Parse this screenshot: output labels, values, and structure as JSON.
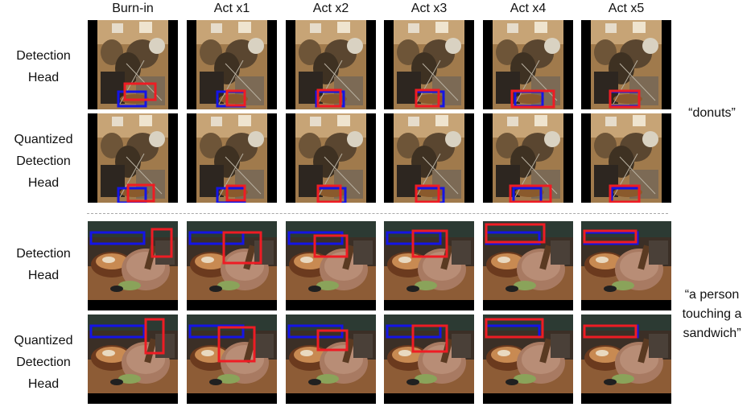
{
  "columns": [
    "Burn-in",
    "Act x1",
    "Act x2",
    "Act x3",
    "Act x4",
    "Act x5"
  ],
  "rows": [
    {
      "label": [
        "Detection",
        "Head"
      ],
      "scene": "donuts",
      "predicted_boxes": [
        "red",
        "blue"
      ]
    },
    {
      "label": [
        "Quantized",
        "Detection",
        "Head"
      ],
      "scene": "donuts",
      "predicted_boxes": [
        "red",
        "blue"
      ]
    },
    {
      "label": [
        "Detection",
        "Head"
      ],
      "scene": "sandwich",
      "predicted_boxes": [
        "red",
        "blue"
      ]
    },
    {
      "label": [
        "Quantized",
        "Detection",
        "Head"
      ],
      "scene": "sandwich",
      "predicted_boxes": [
        "red",
        "blue"
      ]
    }
  ],
  "captions": [
    {
      "lines": [
        "“donuts”"
      ]
    },
    {
      "lines": [
        "“a person",
        "touching a",
        "sandwich”"
      ]
    }
  ],
  "colors": {
    "red_box": "#ee1c24",
    "blue_box": "#1414e6",
    "divider": "#a8a8a8"
  }
}
